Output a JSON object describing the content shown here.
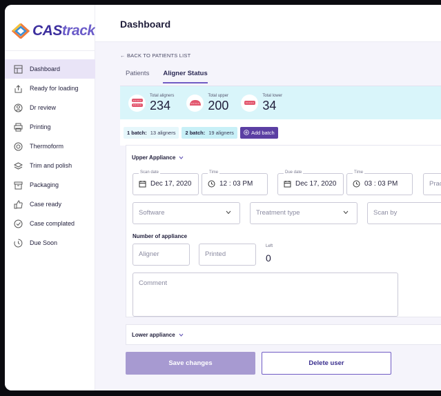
{
  "brand": {
    "name_part1": "CAS",
    "name_part2": "track"
  },
  "header": {
    "title": "Dashboard"
  },
  "sidebar": {
    "items": [
      {
        "label": "Dashboard",
        "icon": "dashboard-icon",
        "active": true
      },
      {
        "label": "Ready for loading",
        "icon": "upload-icon"
      },
      {
        "label": "Dr review",
        "icon": "doctor-icon"
      },
      {
        "label": "Printing",
        "icon": "printer-icon"
      },
      {
        "label": "Thermoform",
        "icon": "thermoform-icon"
      },
      {
        "label": "Trim and polish",
        "icon": "layers-icon"
      },
      {
        "label": "Packaging",
        "icon": "package-icon"
      },
      {
        "label": "Case ready",
        "icon": "thumbs-up-icon"
      },
      {
        "label": "Case complated",
        "icon": "check-circle-icon"
      },
      {
        "label": "Due Soon",
        "icon": "clock-icon"
      }
    ]
  },
  "breadcrumb": {
    "back_label": "← BACK TO PATIENTS LIST"
  },
  "tabs": [
    {
      "label": "Patients",
      "active": false
    },
    {
      "label": "Aligner Status",
      "active": true
    }
  ],
  "stats": [
    {
      "label": "Total aligners",
      "value": "234",
      "icon": "aligner-icon"
    },
    {
      "label": "Total upper",
      "value": "200",
      "icon": "upper-aligner-icon"
    },
    {
      "label": "Total lower",
      "value": "34",
      "icon": "lower-aligner-icon"
    }
  ],
  "batches": [
    {
      "name": "1 batch:",
      "count": "13 aligners"
    },
    {
      "name": "2 batch:",
      "count": "19 aligners"
    }
  ],
  "add_batch_label": "Add batch",
  "upper": {
    "title": "Upper Appliance",
    "scan_date": {
      "legend": "Scan date",
      "value": "Dec 17, 2020"
    },
    "scan_time": {
      "legend": "Time",
      "value": "12 : 03 PM"
    },
    "due_date": {
      "legend": "Due date",
      "value": "Dec 17, 2020"
    },
    "due_time": {
      "legend": "Time",
      "value": "03 : 03 PM"
    },
    "practitioner_placeholder": "Prac",
    "software_placeholder": "Software",
    "treatment_placeholder": "Treatment type",
    "scanby_placeholder": "Scan by",
    "number_label": "Number of appliance",
    "aligner_placeholder": "Aligner",
    "printed_placeholder": "Printed",
    "left_label": "Left",
    "left_value": "0",
    "comment_placeholder": "Comment"
  },
  "lower": {
    "title": "Lower appliance"
  },
  "actions": {
    "save_label": "Save changes",
    "delete_label": "Delete user"
  },
  "colors": {
    "accent": "#5b3fa3",
    "stats_bg": "#d9f5fa",
    "active_nav": "#e9e4f7",
    "save_bg": "#a79ad1"
  }
}
